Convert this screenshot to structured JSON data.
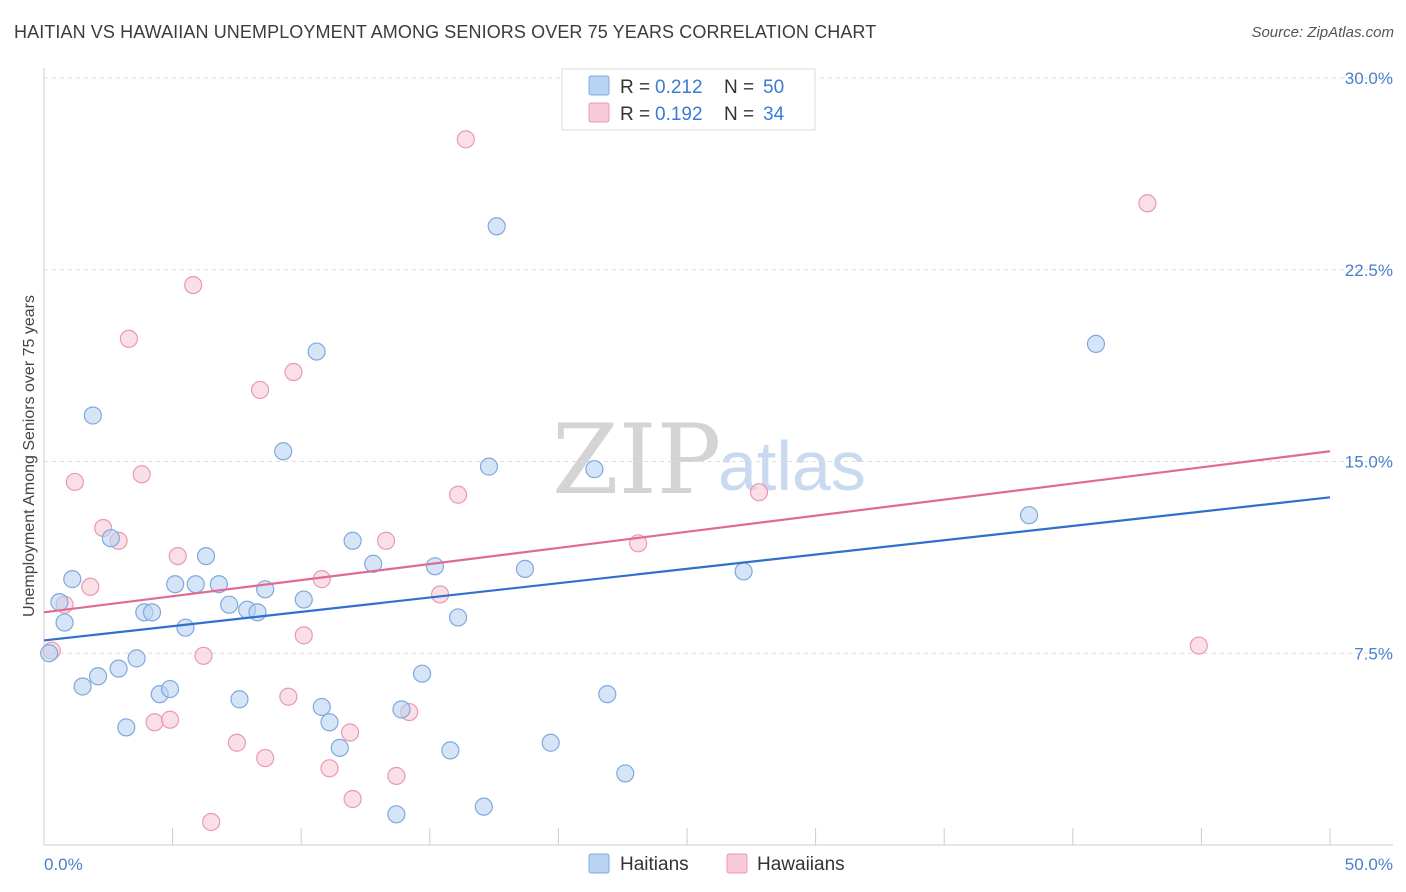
{
  "title": "HAITIAN VS HAWAIIAN UNEMPLOYMENT AMONG SENIORS OVER 75 YEARS CORRELATION CHART",
  "source": "Source: ZipAtlas.com",
  "watermark": {
    "zip": "ZIP",
    "atlas": "atlas"
  },
  "colors": {
    "haitians_fill": "#b9d3f2",
    "haitians_stroke": "#7fa9dd",
    "haitians_line": "#2e6fd0",
    "hawaiians_fill": "#f8c9d6",
    "hawaiians_stroke": "#e89ab1",
    "hawaiians_line": "#e06a94",
    "axis_label": "#4a7fc9",
    "grid": "#dddddd"
  },
  "legend": {
    "rows": [
      {
        "r_label": "R = ",
        "r_value": "0.212",
        "n_label": "N = ",
        "n_value": "50"
      },
      {
        "r_label": "R = ",
        "r_value": "0.192",
        "n_label": "N = ",
        "n_value": "34"
      }
    ],
    "bottom": [
      "Haitians",
      "Hawaiians"
    ]
  },
  "chart_data": {
    "type": "scatter",
    "title": "HAITIAN VS HAWAIIAN UNEMPLOYMENT AMONG SENIORS OVER 75 YEARS CORRELATION CHART",
    "xlabel": "",
    "ylabel": "Unemployment Among Seniors over 75 years",
    "xlim": [
      0,
      50
    ],
    "ylim": [
      0,
      30
    ],
    "x_tick_labels": [
      "0.0%",
      "50.0%"
    ],
    "y_ticks": [
      7.5,
      15.0,
      22.5,
      30.0
    ],
    "y_tick_labels": [
      "7.5%",
      "15.0%",
      "22.5%",
      "30.0%"
    ],
    "grid": true,
    "legend_position": "top-center",
    "series": [
      {
        "name": "Haitians",
        "r": 0.212,
        "n": 50,
        "trend": {
          "x": [
            0,
            50
          ],
          "y": [
            8.0,
            13.6
          ]
        },
        "points": [
          [
            0.2,
            7.5
          ],
          [
            0.6,
            9.5
          ],
          [
            0.8,
            8.7
          ],
          [
            1.1,
            10.4
          ],
          [
            1.5,
            6.2
          ],
          [
            1.9,
            16.8
          ],
          [
            2.1,
            6.6
          ],
          [
            2.6,
            12.0
          ],
          [
            2.9,
            6.9
          ],
          [
            3.2,
            4.6
          ],
          [
            3.6,
            7.3
          ],
          [
            3.9,
            9.1
          ],
          [
            4.2,
            9.1
          ],
          [
            4.5,
            5.9
          ],
          [
            4.9,
            6.1
          ],
          [
            5.1,
            10.2
          ],
          [
            5.5,
            8.5
          ],
          [
            5.9,
            10.2
          ],
          [
            6.3,
            11.3
          ],
          [
            6.8,
            10.2
          ],
          [
            7.2,
            9.4
          ],
          [
            7.6,
            5.7
          ],
          [
            7.9,
            9.2
          ],
          [
            8.3,
            9.1
          ],
          [
            8.6,
            10.0
          ],
          [
            9.3,
            15.4
          ],
          [
            10.1,
            9.6
          ],
          [
            10.6,
            19.3
          ],
          [
            10.8,
            5.4
          ],
          [
            11.1,
            4.8
          ],
          [
            11.5,
            3.8
          ],
          [
            12.0,
            11.9
          ],
          [
            12.8,
            11.0
          ],
          [
            13.7,
            1.2
          ],
          [
            13.9,
            5.3
          ],
          [
            14.7,
            6.7
          ],
          [
            15.2,
            10.9
          ],
          [
            15.8,
            3.7
          ],
          [
            16.1,
            8.9
          ],
          [
            17.1,
            1.5
          ],
          [
            17.3,
            14.8
          ],
          [
            17.6,
            24.2
          ],
          [
            18.7,
            10.8
          ],
          [
            19.7,
            4.0
          ],
          [
            21.4,
            14.7
          ],
          [
            21.9,
            5.9
          ],
          [
            22.6,
            2.8
          ],
          [
            27.2,
            10.7
          ],
          [
            38.3,
            12.9
          ],
          [
            40.9,
            19.6
          ]
        ]
      },
      {
        "name": "Hawaiians",
        "r": 0.192,
        "n": 34,
        "trend": {
          "x": [
            0,
            50
          ],
          "y": [
            9.1,
            15.4
          ]
        },
        "points": [
          [
            0.3,
            7.6
          ],
          [
            0.8,
            9.4
          ],
          [
            1.2,
            14.2
          ],
          [
            1.8,
            10.1
          ],
          [
            2.3,
            12.4
          ],
          [
            2.9,
            11.9
          ],
          [
            3.3,
            19.8
          ],
          [
            3.8,
            14.5
          ],
          [
            4.3,
            4.8
          ],
          [
            4.9,
            4.9
          ],
          [
            5.2,
            11.3
          ],
          [
            5.8,
            21.9
          ],
          [
            6.2,
            7.4
          ],
          [
            6.5,
            0.9
          ],
          [
            7.5,
            4.0
          ],
          [
            8.4,
            17.8
          ],
          [
            8.6,
            3.4
          ],
          [
            9.5,
            5.8
          ],
          [
            9.7,
            18.5
          ],
          [
            10.1,
            8.2
          ],
          [
            10.8,
            10.4
          ],
          [
            11.1,
            3.0
          ],
          [
            11.9,
            4.4
          ],
          [
            12.0,
            1.8
          ],
          [
            13.3,
            11.9
          ],
          [
            13.7,
            2.7
          ],
          [
            14.2,
            5.2
          ],
          [
            15.4,
            9.8
          ],
          [
            16.1,
            13.7
          ],
          [
            16.4,
            27.6
          ],
          [
            23.1,
            11.8
          ],
          [
            27.8,
            13.8
          ],
          [
            42.9,
            25.1
          ],
          [
            44.9,
            7.8
          ]
        ]
      }
    ]
  }
}
